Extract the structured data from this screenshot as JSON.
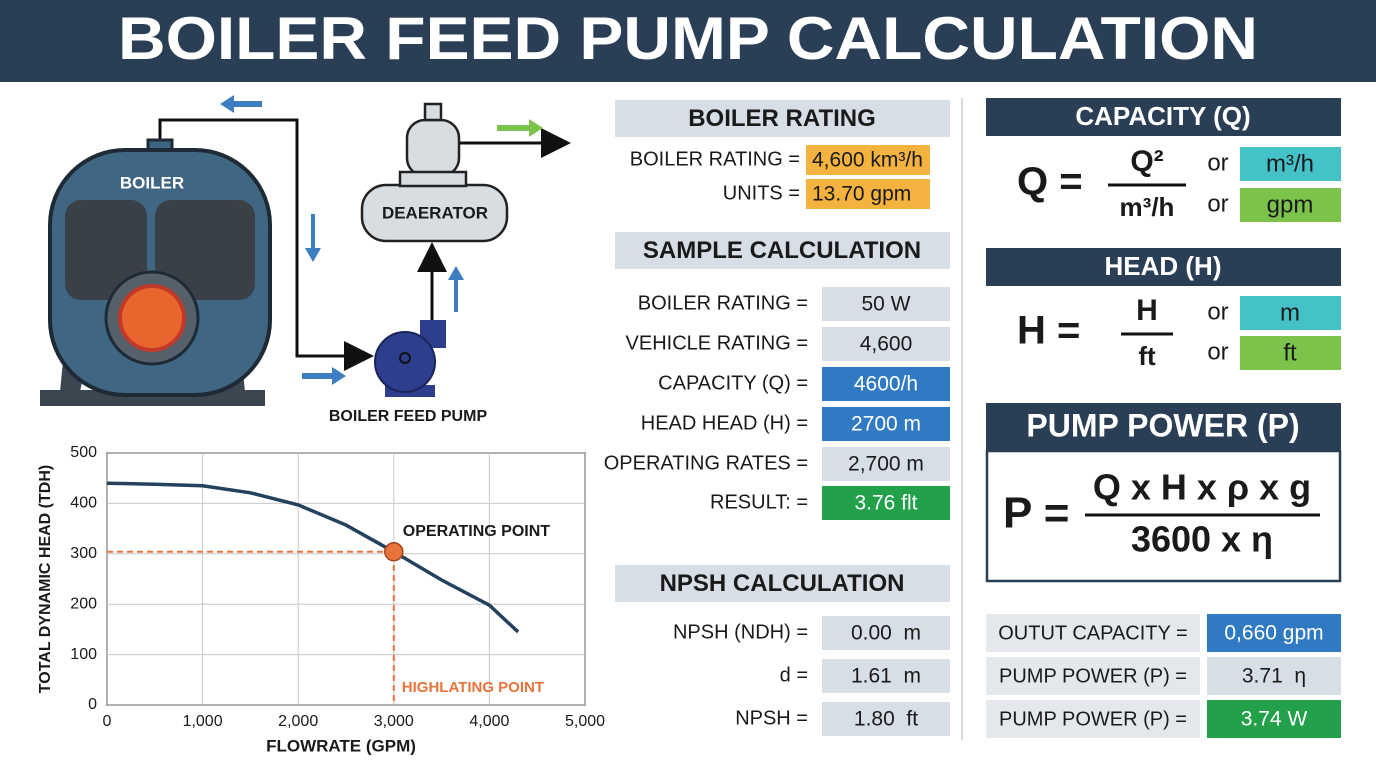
{
  "header": {
    "title": "BOILER FEED PUMP CALCULATION"
  },
  "diagram": {
    "boiler": "BOILER",
    "deaerator": "DEAERATOR",
    "pump": "BOILER FEED PUMP"
  },
  "chart_data": {
    "type": "line",
    "x": [
      0,
      500,
      1000,
      1500,
      2000,
      2500,
      3000,
      3500,
      4000,
      4300
    ],
    "series": [
      {
        "color": "#24415e",
        "values": [
          440,
          438,
          435,
          421,
          397,
          357,
          304,
          248,
          198,
          145
        ]
      }
    ],
    "xlim": [
      0,
      5000
    ],
    "ylim": [
      0,
      500
    ],
    "xticks": [
      0,
      {
        "value": 1000,
        "label": "1,000"
      },
      {
        "value": 2000,
        "label": "2,000"
      },
      {
        "value": 3000,
        "label": "3,000"
      },
      {
        "value": 4000,
        "label": "4,000"
      },
      {
        "value": 5000,
        "label": "5,000"
      }
    ],
    "yticks": [
      0,
      100,
      200,
      300,
      400,
      500
    ],
    "grid": true,
    "xlabel": "FLOWRATE (GPM)",
    "ylabel": "TOTAL DYNAMIC HEAD (TDH)",
    "operating_point": {
      "x": 3000,
      "y": 304,
      "label": "OPERATING POINT",
      "color": "#e8743b"
    },
    "highlight_label": "HIGHLATING POINT"
  },
  "boiler_rating": {
    "title": "BOILER RATING",
    "rows": [
      [
        "BOILER RATING =",
        "4,600 km³/h"
      ],
      [
        "UNITS =",
        "13.70 gpm"
      ]
    ]
  },
  "sample_calculation": {
    "title": "SAMPLE CALCULATION",
    "rows": [
      [
        "BOILER RATING =",
        "50 W"
      ],
      [
        "VEHICLE RATING =",
        "4,600"
      ],
      [
        "CAPACITY (Q) =",
        "4600/h"
      ],
      [
        "HEAD HEAD (H) =",
        "2700 m"
      ],
      [
        "OPERATING RATES =",
        "2,700 m"
      ],
      [
        "RESULT: =",
        "3.76 flt"
      ]
    ]
  },
  "npsh_calculation": {
    "title": "NPSH CALCULATION",
    "rows": [
      [
        "NPSH (NDH) =",
        "0.00  m"
      ],
      [
        "d =",
        "1.61  m"
      ],
      [
        "NPSH =",
        "1.80  ft"
      ]
    ]
  },
  "capacity": {
    "title": "CAPACITY (Q)",
    "lhs": "Q =",
    "numerator": "Q²",
    "denominator": "m³/h",
    "options": [
      [
        "or",
        "m³/h"
      ],
      [
        "or",
        "gpm"
      ]
    ]
  },
  "head": {
    "title": "HEAD (H)",
    "lhs": "H =",
    "numerator": "H",
    "denominator": "ft",
    "options": [
      [
        "or",
        "m"
      ],
      [
        "or",
        "ft"
      ]
    ]
  },
  "pump_power": {
    "title": "PUMP POWER (P)",
    "lhs": "P =",
    "numerator": "Q x H x ρ x g",
    "denominator": "3600 x η"
  },
  "output": {
    "rows": [
      [
        "OUTUT CAPACITY =",
        "0,660 gpm"
      ],
      [
        "PUMP POWER (P) =",
        "3.71  η"
      ],
      [
        "PUMP POWER (P) =",
        "3.74 W"
      ]
    ]
  }
}
